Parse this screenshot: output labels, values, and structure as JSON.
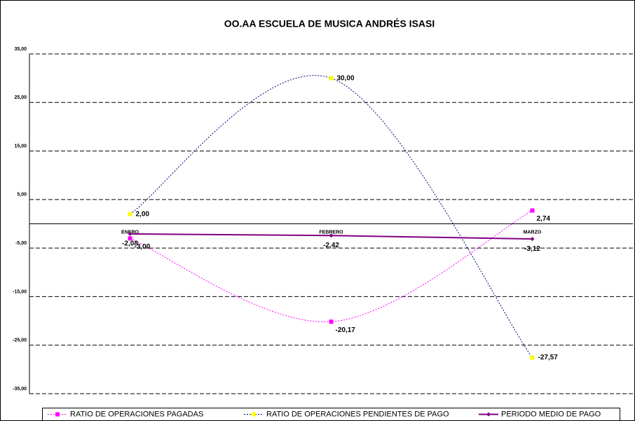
{
  "chart_data": {
    "type": "line",
    "title": "OO.AA ESCUELA DE MUSICA ANDRÉS ISASI",
    "categories": [
      "ENERO",
      "FEBRERO",
      "MARZO"
    ],
    "series": [
      {
        "name": "RATIO DE OPERACIONES PAGADAS",
        "color": "#ff00ff",
        "marker_color": "#ff00ff",
        "smooth": true,
        "dash": true,
        "values": [
          -3.0,
          -20.17,
          2.74
        ],
        "value_labels": [
          "-3,00",
          "-20,17",
          "2,74"
        ]
      },
      {
        "name": "RATIO DE OPERACIONES PENDIENTES DE PAGO",
        "color": "#000080",
        "marker_color": "#ffff00",
        "smooth": true,
        "dash": true,
        "values": [
          2.0,
          30.0,
          -27.57
        ],
        "value_labels": [
          "2,00",
          "30,00",
          "-27,57"
        ]
      },
      {
        "name": "PERIODO MEDIO DE PAGO",
        "color": "#800080",
        "marker_color": "#800080",
        "smooth": false,
        "dash": false,
        "values": [
          -2.08,
          -2.42,
          -3.12
        ],
        "value_labels": [
          "-2,08",
          "-2,42",
          "-3,12"
        ]
      }
    ],
    "ylim": [
      -35,
      35
    ],
    "yticks": [
      {
        "value": -35,
        "label": "-35,00"
      },
      {
        "value": -25,
        "label": "-25,00"
      },
      {
        "value": -15,
        "label": "-15,00"
      },
      {
        "value": -5,
        "label": "-5,00"
      },
      {
        "value": 5,
        "label": "5,00"
      },
      {
        "value": 15,
        "label": "15,00"
      },
      {
        "value": 25,
        "label": "25,00"
      },
      {
        "value": 35,
        "label": "35,00"
      }
    ],
    "grid": true,
    "legend": "bottom"
  }
}
